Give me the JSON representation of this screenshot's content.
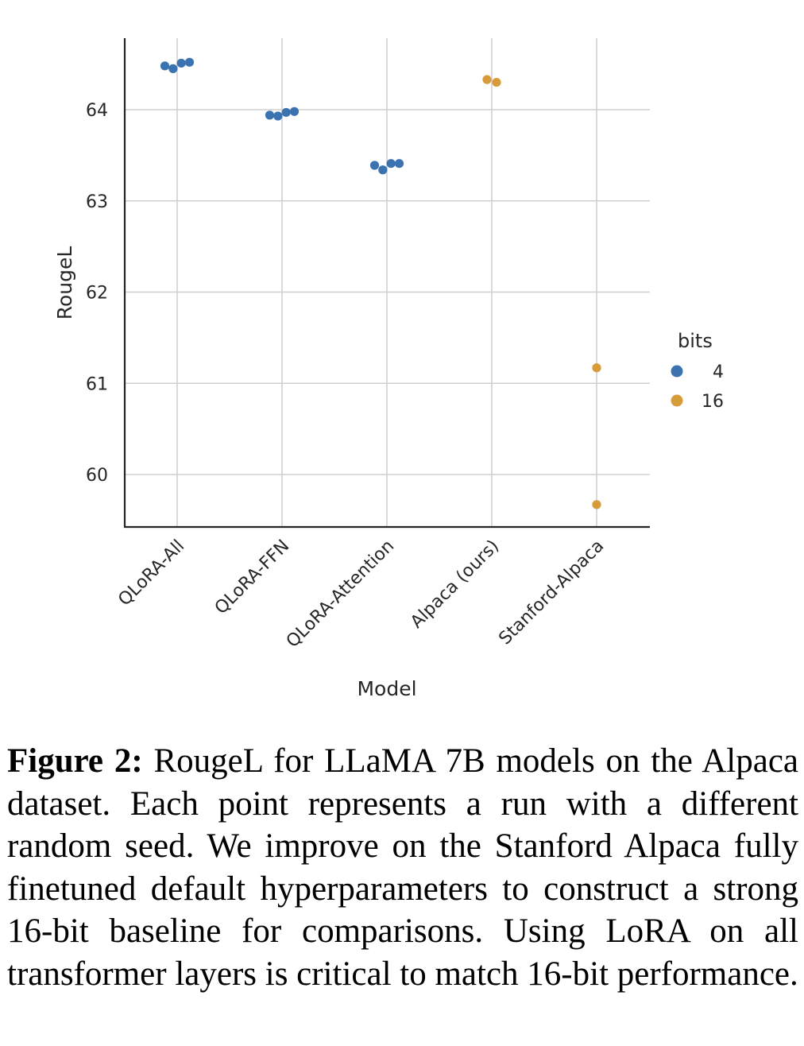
{
  "chart_data": {
    "type": "scatter",
    "title": "",
    "xlabel": "Model",
    "ylabel": "RougeL",
    "categories": [
      "QLoRA-All",
      "QLoRA-FFN",
      "QLoRA-Attention",
      "Alpaca (ours)",
      "Stanford-Alpaca"
    ],
    "y_ticks": [
      60,
      61,
      62,
      63,
      64
    ],
    "ylim": [
      59.45,
      64.8
    ],
    "grid": true,
    "legend": {
      "title": "bits",
      "placement": "right"
    },
    "series": [
      {
        "name": "4",
        "color": "#3a73b0",
        "points": [
          {
            "category": "QLoRA-All",
            "y": 64.48
          },
          {
            "category": "QLoRA-All",
            "y": 64.45
          },
          {
            "category": "QLoRA-All",
            "y": 64.51
          },
          {
            "category": "QLoRA-All",
            "y": 64.52
          },
          {
            "category": "QLoRA-FFN",
            "y": 63.94
          },
          {
            "category": "QLoRA-FFN",
            "y": 63.93
          },
          {
            "category": "QLoRA-FFN",
            "y": 63.97
          },
          {
            "category": "QLoRA-FFN",
            "y": 63.98
          },
          {
            "category": "QLoRA-Attention",
            "y": 63.39
          },
          {
            "category": "QLoRA-Attention",
            "y": 63.34
          },
          {
            "category": "QLoRA-Attention",
            "y": 63.41
          },
          {
            "category": "QLoRA-Attention",
            "y": 63.41
          }
        ]
      },
      {
        "name": "16",
        "color": "#d89b3a",
        "points": [
          {
            "category": "Alpaca (ours)",
            "y": 64.33
          },
          {
            "category": "Alpaca (ours)",
            "y": 64.3
          },
          {
            "category": "Stanford-Alpaca",
            "y": 61.17
          },
          {
            "category": "Stanford-Alpaca",
            "y": 59.67
          }
        ]
      }
    ]
  },
  "caption": {
    "label": "Figure 2:",
    "text": "RougeL for LLaMA 7B models on the Alpaca dataset. Each point represents a run with a different random seed. We improve on the Stanford Alpaca fully finetuned default hyperparameters to construct a strong 16-bit baseline for comparisons. Using LoRA on all transformer layers is critical to match 16-bit performance."
  }
}
